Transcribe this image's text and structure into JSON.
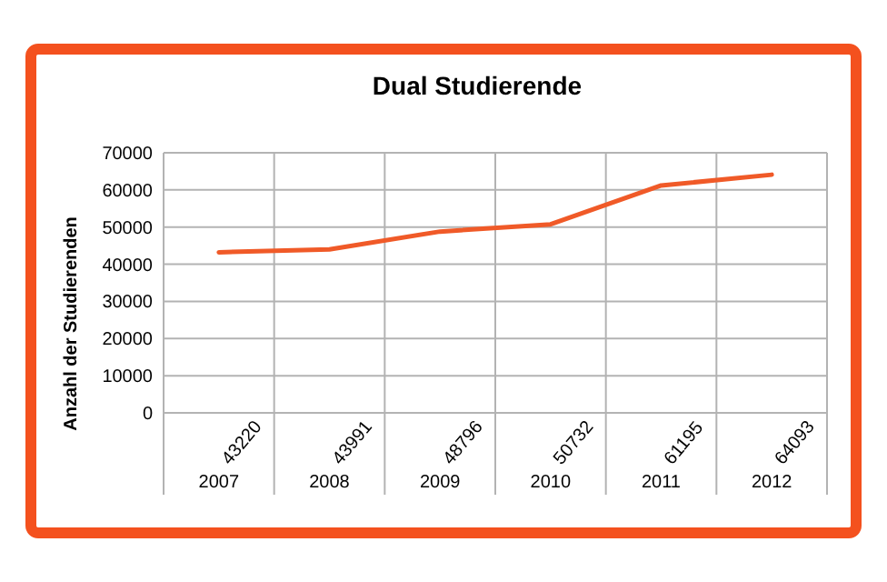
{
  "chart_data": {
    "type": "line",
    "title": "Dual Studierende",
    "ylabel": "Anzahl der Studierenden",
    "categories": [
      "2007",
      "2008",
      "2009",
      "2010",
      "2011",
      "2012"
    ],
    "series": [
      {
        "color": "#f05a28",
        "values": [
          43220,
          43991,
          48796,
          50732,
          61195,
          64093
        ]
      }
    ],
    "ylim": [
      0,
      70000
    ],
    "yticks": [
      0,
      10000,
      20000,
      30000,
      40000,
      50000,
      60000,
      70000
    ],
    "grid": true,
    "data_labels": true,
    "marker": "none",
    "line_style": "solid"
  }
}
